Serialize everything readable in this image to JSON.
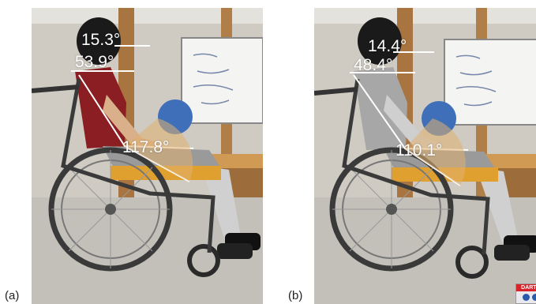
{
  "figure": {
    "panels": [
      {
        "label": "(a)",
        "angles": {
          "top": "15.3°",
          "trunk": "53.9°",
          "hip": "117.8°"
        }
      },
      {
        "label": "(b)",
        "angles": {
          "top": "14.4°",
          "trunk": "48.4°",
          "hip": "110.1°"
        }
      }
    ],
    "logo_text": "DARTF"
  },
  "colors": {
    "measurement_lines": "#ffffff",
    "angle_fill": "#e0b070",
    "wall": "#c8c4ba",
    "floor": "#b8b6ae",
    "shirt_a": "#8a1e22",
    "shirt_b": "#a7a7a7",
    "wheelchair_frame": "#3a3a3a",
    "seat": "#e0a030"
  }
}
